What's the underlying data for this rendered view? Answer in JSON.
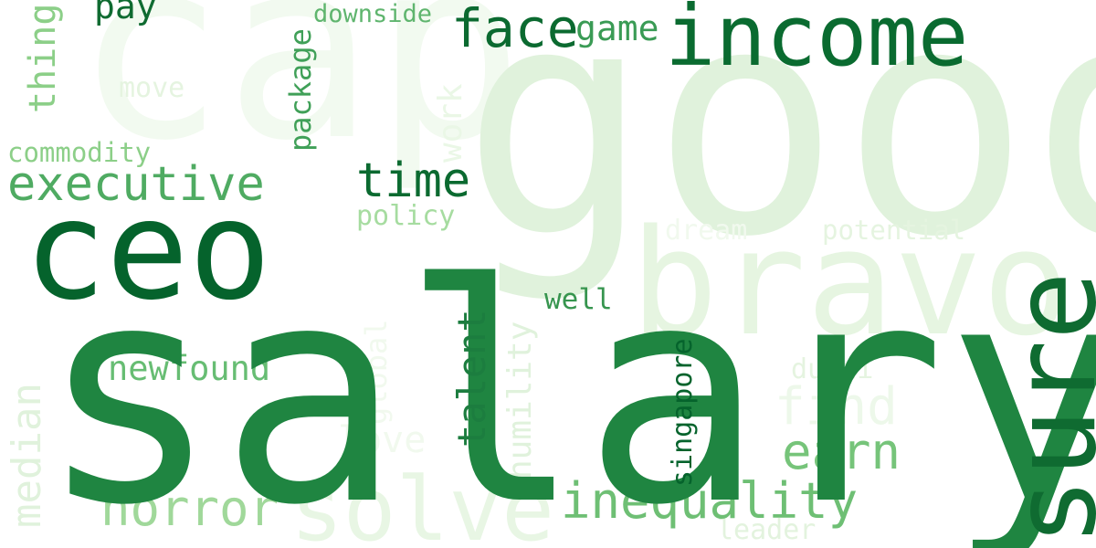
{
  "words": {
    "good": "good",
    "cap": "cap",
    "bravo": "bravo",
    "salary": "salary",
    "ceo": "ceo",
    "sure": "sure",
    "income": "income",
    "face": "face",
    "game": "game",
    "pay": "pay",
    "downside": "downside",
    "thing": "thing",
    "move": "move",
    "package": "package",
    "work": "work",
    "commodity": "commodity",
    "executive": "executive",
    "time": "time",
    "policy": "policy",
    "dream": "dream",
    "potential": "potential",
    "well": "well",
    "median": "median",
    "global": "global",
    "talent": "talent",
    "humility": "humility",
    "singapore": "singapore",
    "newfound": "newfound",
    "dubai": "dubai",
    "find": "find",
    "earn": "earn",
    "love": "love",
    "horror": "horror",
    "solve": "solve",
    "inequality": "inequality",
    "leader": "leader"
  },
  "palette": {
    "background": "#ffffff",
    "darkest": "#05632c",
    "dark": "#1f8541",
    "mid": "#6ebf74",
    "light": "#a6dca0",
    "faint": "#e0f2dc"
  }
}
